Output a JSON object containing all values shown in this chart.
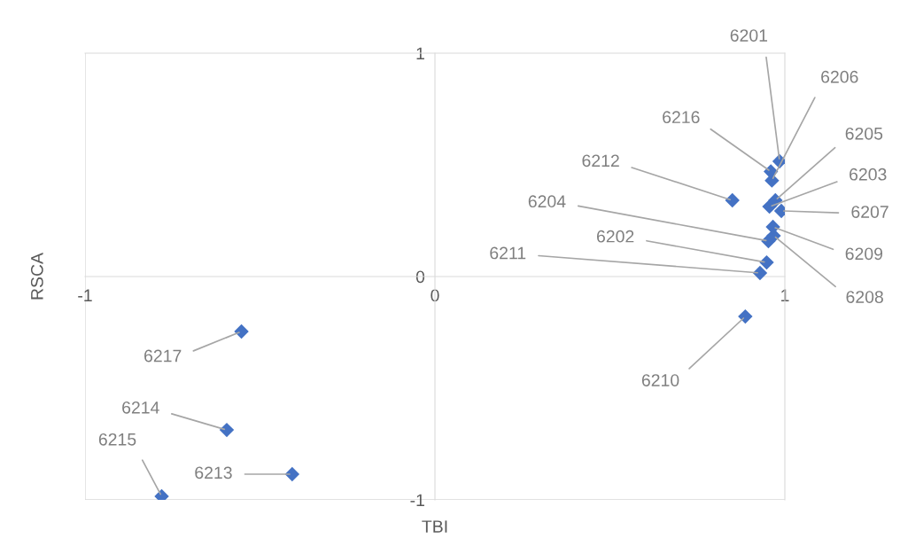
{
  "chart_data": {
    "type": "scatter",
    "xlabel": "TBI",
    "ylabel": "RSCA",
    "x": [
      0.985,
      0.948,
      0.956,
      0.953,
      0.973,
      0.963,
      0.99,
      0.968,
      0.966,
      0.887,
      0.929,
      0.85,
      -0.408,
      -0.595,
      -0.781,
      0.96,
      -0.553
    ],
    "values": [
      0.516,
      0.063,
      0.313,
      0.159,
      0.341,
      0.43,
      0.294,
      0.183,
      0.222,
      -0.179,
      0.016,
      0.341,
      -0.885,
      -0.687,
      -0.984,
      0.47,
      -0.246
    ],
    "color": "#4472c4",
    "marker": "diamond",
    "xlim": [
      -1,
      1
    ],
    "ylim": [
      -1,
      1
    ],
    "xticks": [
      -1,
      0,
      1
    ],
    "yticks": [
      -1,
      0,
      1
    ],
    "grid": false,
    "annotations": [
      {
        "text": "6201",
        "x": 0.985,
        "y": 0.516
      },
      {
        "text": "6202",
        "x": 0.948,
        "y": 0.063
      },
      {
        "text": "6203",
        "x": 0.956,
        "y": 0.313
      },
      {
        "text": "6204",
        "x": 0.953,
        "y": 0.159
      },
      {
        "text": "6205",
        "x": 0.973,
        "y": 0.341
      },
      {
        "text": "6206",
        "x": 0.963,
        "y": 0.43
      },
      {
        "text": "6207",
        "x": 0.99,
        "y": 0.294
      },
      {
        "text": "6208",
        "x": 0.968,
        "y": 0.183
      },
      {
        "text": "6209",
        "x": 0.966,
        "y": 0.222
      },
      {
        "text": "6210",
        "x": 0.887,
        "y": -0.179
      },
      {
        "text": "6211",
        "x": 0.929,
        "y": 0.016
      },
      {
        "text": "6212",
        "x": 0.85,
        "y": 0.341
      },
      {
        "text": "6213",
        "x": -0.408,
        "y": -0.885
      },
      {
        "text": "6214",
        "x": -0.595,
        "y": -0.687
      },
      {
        "text": "6215",
        "x": -0.781,
        "y": -0.984
      },
      {
        "text": "6216",
        "x": 0.96,
        "y": 0.47
      },
      {
        "text": "6217",
        "x": -0.553,
        "y": -0.246
      }
    ]
  }
}
